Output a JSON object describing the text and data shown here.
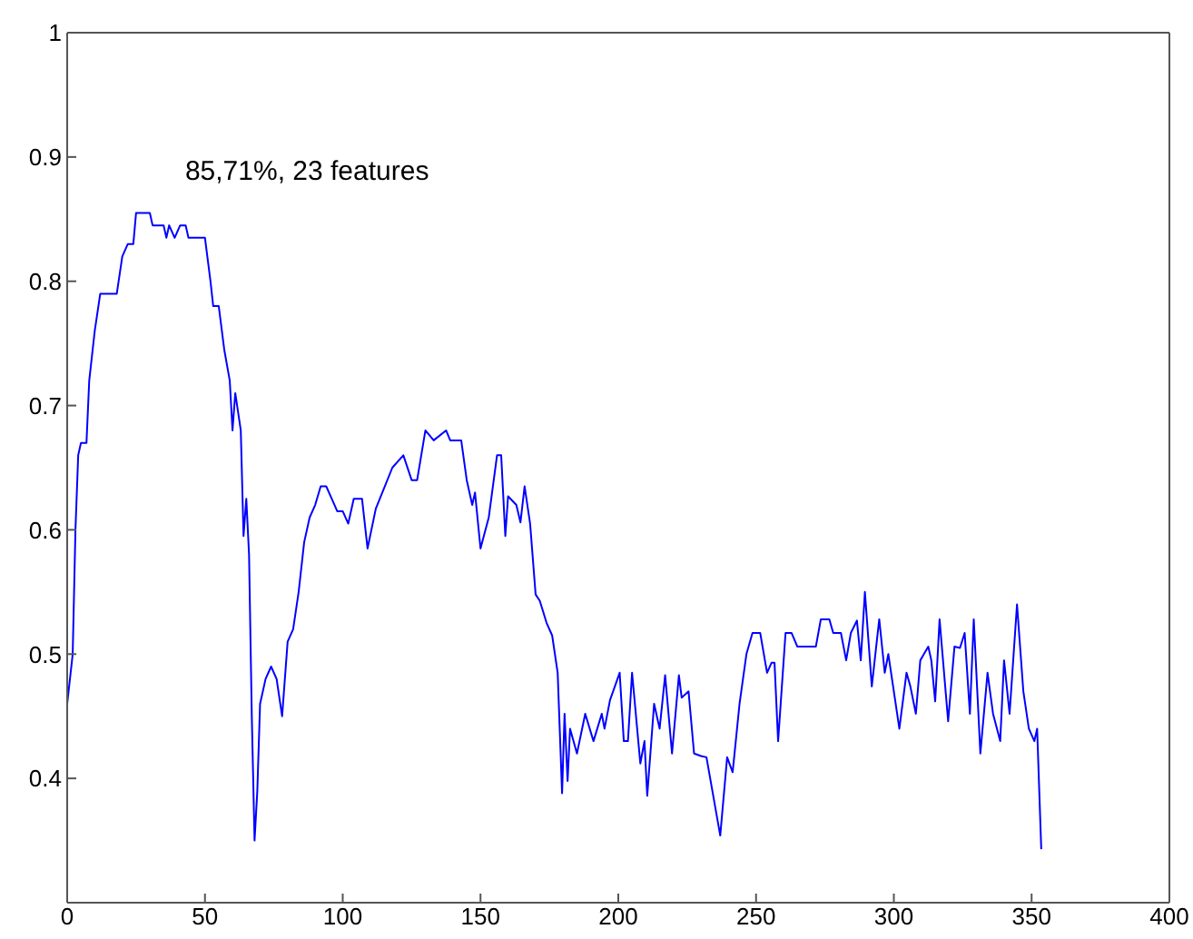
{
  "chart_data": {
    "type": "line",
    "x": [
      0,
      2,
      3,
      4,
      5,
      7,
      8,
      10,
      12,
      18,
      20,
      22,
      24,
      25,
      30,
      31,
      35,
      36,
      37,
      39,
      41,
      43,
      44,
      50,
      52,
      53,
      55,
      57,
      59,
      60,
      61,
      62,
      63,
      64,
      65,
      66,
      67,
      68,
      69,
      70,
      72,
      74,
      76,
      78,
      80,
      82,
      84,
      86,
      88,
      90,
      92,
      94,
      96,
      98,
      100,
      102,
      104,
      107,
      109,
      112,
      114,
      118,
      122,
      125,
      127,
      130,
      133,
      137.5,
      139,
      143,
      145,
      147,
      148,
      150,
      153,
      156,
      157.5,
      159,
      160,
      163,
      164.5,
      166,
      168,
      170,
      171.5,
      174,
      176,
      178,
      179.6,
      180.5,
      181.6,
      182.5,
      185,
      188,
      191,
      194,
      195,
      197,
      200.5,
      202,
      203.5,
      205,
      208,
      209.5,
      210.5,
      213,
      215,
      217,
      219.5,
      222,
      223,
      225.5,
      227.5,
      230,
      232,
      237,
      239.5,
      241.5,
      244,
      246.5,
      248.7,
      251.5,
      254,
      255.6,
      256.7,
      258,
      260.7,
      262.9,
      265,
      271.7,
      273.5,
      276.6,
      278,
      280.8,
      282.7,
      284.4,
      286.6,
      288,
      289.5,
      292,
      294.7,
      296.7,
      298,
      302,
      304.6,
      306,
      308,
      309.6,
      312.5,
      313.6,
      315,
      316.6,
      319.7,
      322,
      324,
      325.7,
      327.6,
      329,
      331.4,
      334,
      336,
      338.6,
      340,
      342,
      344.7,
      347,
      349,
      351,
      352,
      353.5
    ],
    "series": [
      {
        "color": "#0000ff",
        "values": [
          0.46,
          0.5,
          0.6,
          0.66,
          0.67,
          0.67,
          0.72,
          0.76,
          0.79,
          0.79,
          0.82,
          0.83,
          0.83,
          0.855,
          0.855,
          0.845,
          0.845,
          0.835,
          0.845,
          0.835,
          0.845,
          0.845,
          0.835,
          0.835,
          0.8,
          0.78,
          0.78,
          0.745,
          0.72,
          0.68,
          0.71,
          0.695,
          0.68,
          0.595,
          0.625,
          0.58,
          0.45,
          0.35,
          0.39,
          0.46,
          0.48,
          0.49,
          0.48,
          0.45,
          0.51,
          0.52,
          0.55,
          0.59,
          0.61,
          0.62,
          0.635,
          0.635,
          0.625,
          0.615,
          0.615,
          0.605,
          0.625,
          0.625,
          0.585,
          0.617,
          0.628,
          0.65,
          0.66,
          0.64,
          0.64,
          0.68,
          0.672,
          0.68,
          0.672,
          0.672,
          0.64,
          0.62,
          0.63,
          0.585,
          0.61,
          0.66,
          0.66,
          0.595,
          0.627,
          0.62,
          0.606,
          0.635,
          0.605,
          0.548,
          0.543,
          0.525,
          0.515,
          0.485,
          0.388,
          0.452,
          0.398,
          0.44,
          0.42,
          0.452,
          0.43,
          0.452,
          0.44,
          0.463,
          0.485,
          0.43,
          0.43,
          0.485,
          0.412,
          0.43,
          0.386,
          0.46,
          0.44,
          0.483,
          0.42,
          0.483,
          0.465,
          0.47,
          0.42,
          0.418,
          0.417,
          0.354,
          0.417,
          0.405,
          0.46,
          0.5,
          0.517,
          0.517,
          0.485,
          0.493,
          0.493,
          0.43,
          0.517,
          0.517,
          0.506,
          0.506,
          0.528,
          0.528,
          0.517,
          0.517,
          0.495,
          0.517,
          0.527,
          0.495,
          0.55,
          0.474,
          0.528,
          0.485,
          0.5,
          0.44,
          0.485,
          0.474,
          0.452,
          0.495,
          0.506,
          0.495,
          0.462,
          0.528,
          0.446,
          0.506,
          0.505,
          0.517,
          0.452,
          0.528,
          0.42,
          0.485,
          0.452,
          0.43,
          0.495,
          0.452,
          0.54,
          0.47,
          0.44,
          0.43,
          0.44,
          0.343
        ]
      }
    ],
    "xlim": [
      0,
      400
    ],
    "xticks": [
      0,
      50,
      100,
      150,
      200,
      250,
      300,
      350,
      400
    ],
    "ylim": [
      0.3,
      1
    ],
    "yticks": [
      0.4,
      0.5,
      0.6,
      0.7,
      0.8,
      0.9,
      1
    ],
    "annotations": [
      {
        "text": "85,71%, 23 features",
        "x": 23,
        "y": 0.857
      }
    ],
    "marker": "none"
  }
}
